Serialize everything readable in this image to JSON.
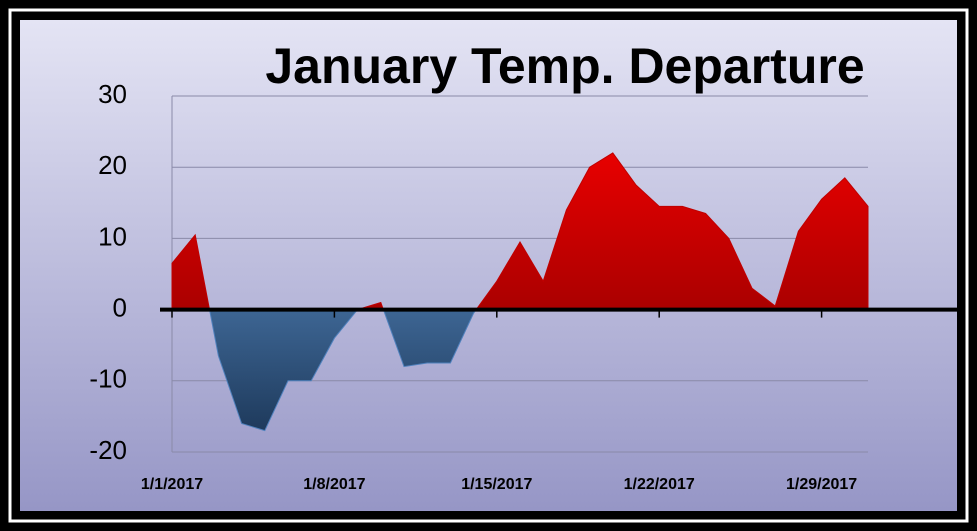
{
  "chart_data": {
    "type": "area",
    "title": "January Temp. Departure",
    "categories": [
      "1/1/2017",
      null,
      null,
      null,
      null,
      null,
      null,
      "1/8/2017",
      null,
      null,
      null,
      null,
      null,
      null,
      "1/15/2017",
      null,
      null,
      null,
      null,
      null,
      null,
      "1/22/2017",
      null,
      null,
      null,
      null,
      null,
      null,
      "1/29/2017",
      null,
      null
    ],
    "series": [
      {
        "values": [
          6.5,
          10.5,
          -6.5,
          -16,
          -17,
          -10,
          -10,
          -4,
          0,
          1,
          -8,
          -7.5,
          -7.5,
          -0.5,
          4,
          9.5,
          4,
          14,
          20,
          22,
          17.5,
          14.5,
          14.5,
          13.5,
          10,
          3,
          0.5,
          11,
          15.5,
          18.5,
          14.5
        ]
      }
    ],
    "positive_color": "#c00000",
    "negative_color": "#4f81bd",
    "ylim": [
      -20,
      30
    ],
    "yticks": [
      -20,
      -10,
      0,
      10,
      20,
      30
    ],
    "grid": true
  }
}
